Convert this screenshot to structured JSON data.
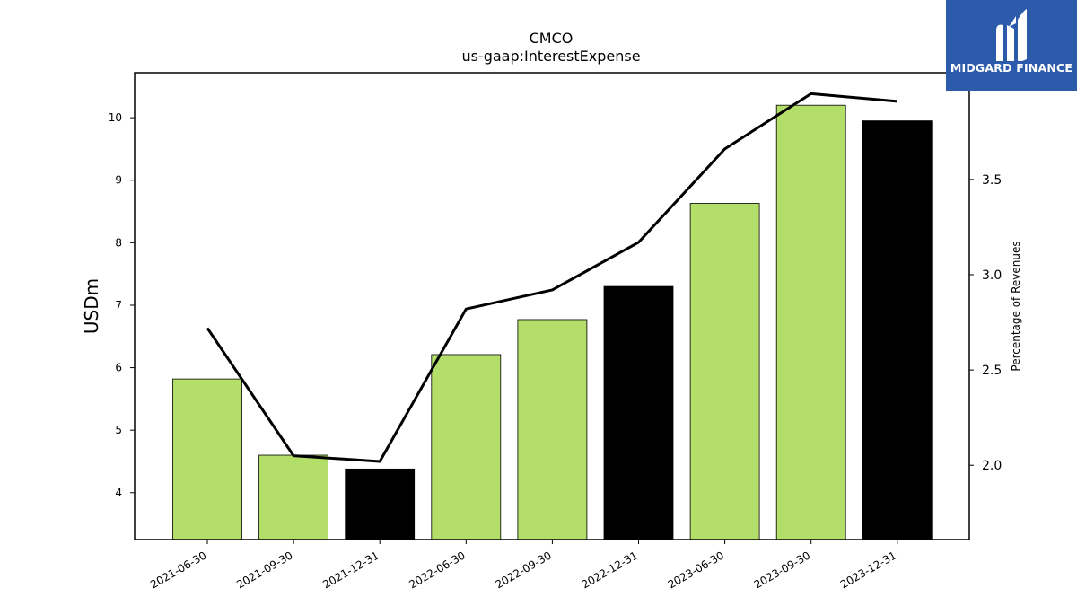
{
  "chart_data": {
    "type": "bar",
    "title": "CMCO",
    "subtitle": "us-gaap:InterestExpense",
    "ylabel": "USDm",
    "ylabel_right": "Percentage of Revenues",
    "categories": [
      "2021-06-30",
      "2021-09-30",
      "2021-12-31",
      "2022-06-30",
      "2022-09-30",
      "2022-12-31",
      "2023-06-30",
      "2023-09-30",
      "2023-12-31"
    ],
    "values": [
      5.82,
      4.6,
      4.38,
      6.21,
      6.77,
      7.3,
      8.63,
      10.2,
      9.95
    ],
    "bar_colors": [
      "#b3de69",
      "#b3de69",
      "#000000",
      "#b3de69",
      "#b3de69",
      "#000000",
      "#b3de69",
      "#b3de69",
      "#000000"
    ],
    "ylim": [
      3.25,
      10.72
    ],
    "yticks": [
      4,
      5,
      6,
      7,
      8,
      9,
      10
    ],
    "line_series": {
      "values": [
        2.72,
        2.05,
        2.02,
        2.82,
        2.92,
        3.17,
        3.66,
        3.95,
        3.91
      ],
      "color": "#000000"
    },
    "ylim_right": [
      1.61,
      4.06
    ],
    "yticks_right": [
      "2.0",
      "2.5",
      "3.0",
      "3.5"
    ],
    "grid": false,
    "legend": "none"
  },
  "logo": {
    "text": "MIDGARD FINANCE",
    "background": "#2d5bab"
  }
}
